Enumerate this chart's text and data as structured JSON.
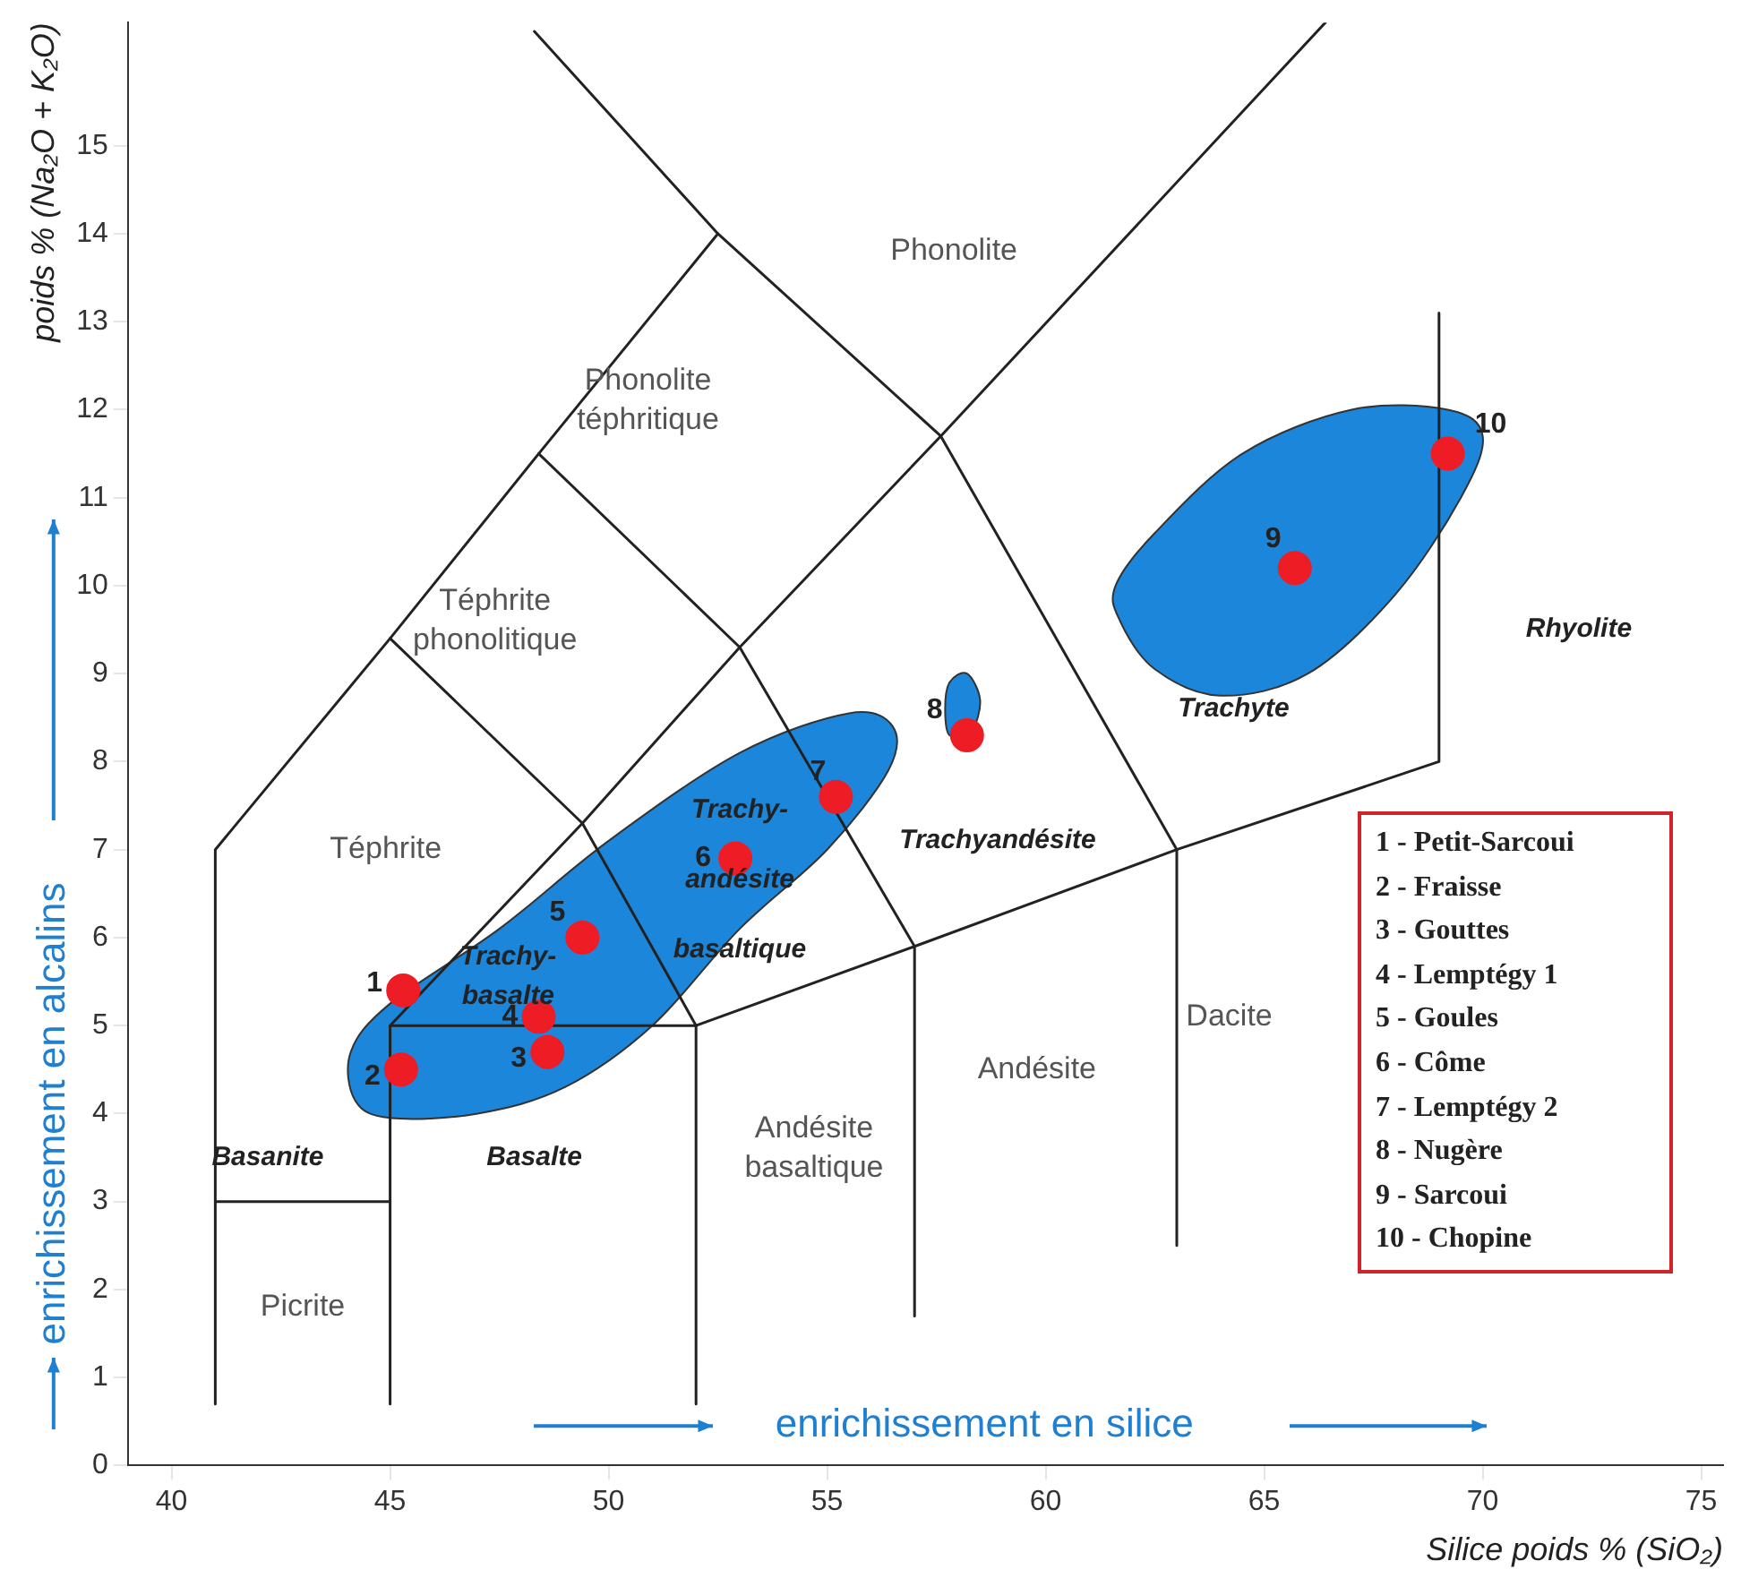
{
  "chart_data": {
    "type": "scatter",
    "xlabel": "Silice poids % (SiO₂)",
    "ylabel": "poids % (Na₂O + K₂O)",
    "xlim": [
      39,
      75.5
    ],
    "ylim": [
      0,
      16.4
    ],
    "xticks": [
      40,
      45,
      50,
      55,
      60,
      65,
      70,
      75
    ],
    "yticks": [
      0,
      1,
      2,
      3,
      4,
      5,
      6,
      7,
      8,
      9,
      10,
      11,
      12,
      13,
      14,
      15
    ],
    "grid": false,
    "legend": false,
    "series": [
      {
        "color": "#ee1c24",
        "x": [
          45.3,
          45.25,
          48.6,
          48.4,
          49.4,
          52.9,
          55.2,
          58.2,
          65.7,
          69.2
        ],
        "values": [
          5.4,
          4.5,
          4.7,
          5.1,
          6.0,
          6.9,
          7.6,
          8.3,
          10.2,
          11.5
        ]
      },
      {
        "type": "line",
        "color": "#222222",
        "x": [
          41,
          45
        ],
        "values": [
          3,
          3
        ]
      },
      {
        "type": "line",
        "color": "#222222",
        "x": [
          45,
          45,
          49.4,
          53,
          57.6,
          66.4
        ],
        "values": [
          0.7,
          5,
          7.3,
          9.3,
          11.7,
          16.4
        ]
      },
      {
        "type": "line",
        "color": "#222222",
        "x": [
          45,
          52
        ],
        "values": [
          5,
          5
        ]
      },
      {
        "type": "line",
        "color": "#222222",
        "x": [
          52,
          52,
          57,
          63,
          69,
          69
        ],
        "values": [
          0.7,
          5,
          5.9,
          7,
          8,
          13.1
        ]
      },
      {
        "type": "line",
        "color": "#222222",
        "x": [
          57,
          57,
          53,
          48.4
        ],
        "values": [
          1.7,
          5.9,
          9.3,
          11.5
        ]
      },
      {
        "type": "line",
        "color": "#222222",
        "x": [
          63,
          63,
          57.6,
          52.5
        ],
        "values": [
          2.5,
          7,
          11.7,
          14
        ]
      },
      {
        "type": "line",
        "color": "#222222",
        "x": [
          41,
          41,
          45,
          48.4,
          52.5,
          48.3
        ],
        "values": [
          0.7,
          7,
          9.4,
          11.5,
          14,
          16.3
        ]
      },
      {
        "type": "line",
        "color": "#222222",
        "x": [
          45,
          49.4,
          52
        ],
        "values": [
          9.4,
          7.3,
          5
        ]
      }
    ],
    "annotations": [
      "1",
      "2",
      "3",
      "4",
      "5",
      "6",
      "7",
      "8",
      "9",
      "10",
      "Phonolite",
      "Phonolite\ntéphritique",
      "Téphrite\nphonolitique",
      "Téphrite",
      "Trachy-\nandésite\nbasaltique",
      "Trachy-\nbasalte",
      "Trachyandésite",
      "Trachyte",
      "Rhyolite",
      "Dacite",
      "Andésite",
      "Andésite\nbasaltique",
      "Basanite",
      "Basalte",
      "Picrite",
      "enrichissement en silice",
      "enrichissement en alcalins",
      "1  - Petit-Sarcoui",
      "2  - Fraisse",
      "3  - Gouttes",
      "4  - Lemptégy 1",
      "5 - Goules",
      "6 - Côme",
      "7 - Lemptégy 2",
      "8 - Nugère",
      "9 - Sarcoui",
      "10 - Chopine"
    ]
  }
}
